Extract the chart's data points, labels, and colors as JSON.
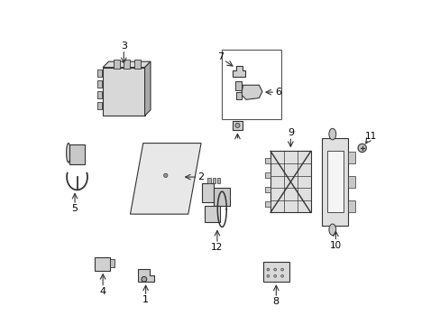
{
  "background_color": "#ffffff",
  "line_color": "#333333",
  "text_color": "#000000"
}
